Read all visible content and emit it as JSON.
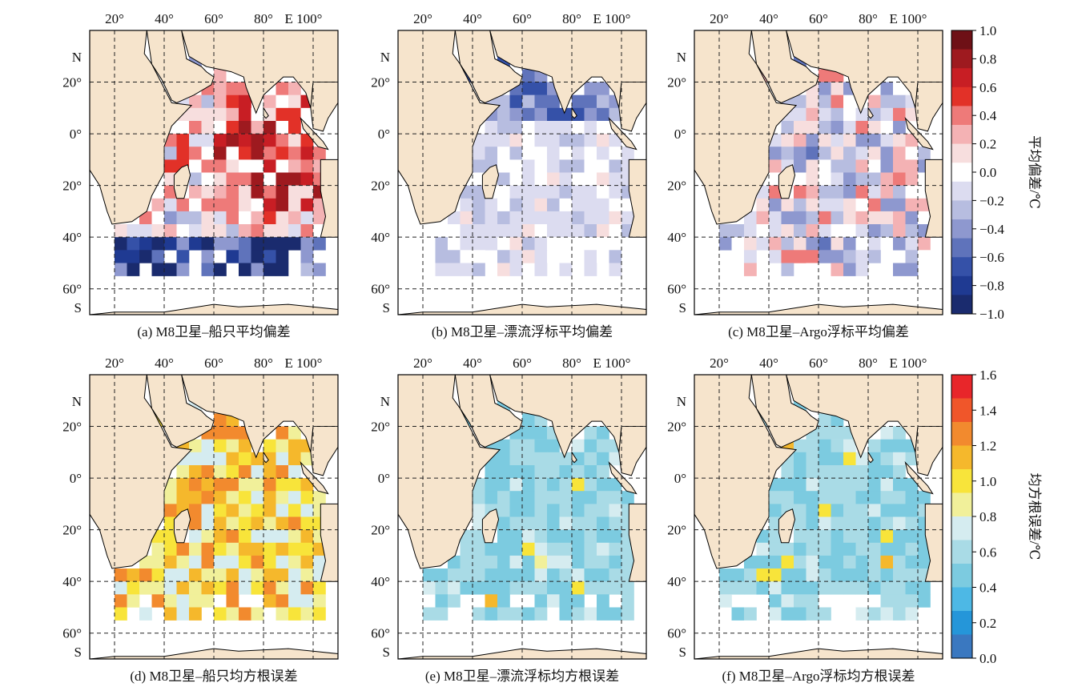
{
  "figure": {
    "panel_titles": [
      "(a) M8卫星–船只平均偏差",
      "(b) M8卫星–漂流浮标平均偏差",
      "(c) M8卫星–Argo浮标平均偏差",
      "(d) M8卫星–船只均方根误差",
      "(e) M8卫星–漂流浮标均方根误差",
      "(f) M8卫星–Argo浮标均方根误差"
    ],
    "lon_ticks": [
      "20°",
      "40°",
      "60°",
      "80°",
      "E 100°"
    ],
    "lat_ticks": [
      "N",
      "20°",
      "0°",
      "20°",
      "40°",
      "60°",
      "S"
    ],
    "colorbar_bias": {
      "label": "平均偏差/℃",
      "ticks": [
        "1.0",
        "0.8",
        "0.6",
        "0.4",
        "0.2",
        "0.0",
        "−0.2",
        "−0.4",
        "−0.6",
        "−0.8",
        "−1.0"
      ],
      "colors": [
        "#6e1016",
        "#9e1a1f",
        "#c81e24",
        "#e23128",
        "#ee7a79",
        "#f4b2b4",
        "#f7dede",
        "#ffffff",
        "#dcdcf0",
        "#b7bde0",
        "#8e98cf",
        "#5f73bb",
        "#3551a8",
        "#1f3a92",
        "#1a2b6e"
      ]
    },
    "colorbar_rmse": {
      "label": "均方根误差/℃",
      "ticks": [
        "1.6",
        "1.4",
        "1.2",
        "1.0",
        "0.8",
        "0.6",
        "0.4",
        "0.2",
        "0.0"
      ],
      "colors": [
        "#e8262a",
        "#f0562a",
        "#f28a2e",
        "#f5b82c",
        "#f8e43a",
        "#f1f09a",
        "#d5ecf0",
        "#a9dbe6",
        "#7ccbe0",
        "#4db8e5",
        "#2596d9",
        "#3a78c0"
      ]
    },
    "land_color": "#f6e4cc"
  },
  "chart_data": [
    {
      "type": "heatmap",
      "title": "(a) M8卫星–船只平均偏差",
      "variable": "平均偏差/℃",
      "x_range": [
        10,
        110
      ],
      "y_range": [
        -70,
        40
      ],
      "seed": 11,
      "vmin": -1.0,
      "vmax": 1.0
    },
    {
      "type": "heatmap",
      "title": "(b) M8卫星–漂流浮标平均偏差",
      "variable": "平均偏差/℃",
      "x_range": [
        10,
        110
      ],
      "y_range": [
        -70,
        40
      ],
      "seed": 23,
      "vmin": -1.0,
      "vmax": 1.0
    },
    {
      "type": "heatmap",
      "title": "(c) M8卫星–Argo浮标平均偏差",
      "variable": "平均偏差/℃",
      "x_range": [
        10,
        110
      ],
      "y_range": [
        -70,
        40
      ],
      "seed": 37,
      "vmin": -1.0,
      "vmax": 1.0
    },
    {
      "type": "heatmap",
      "title": "(d) M8卫星–船只均方根误差",
      "variable": "均方根误差/℃",
      "x_range": [
        10,
        110
      ],
      "y_range": [
        -70,
        40
      ],
      "seed": 41,
      "vmin": 0.0,
      "vmax": 1.6
    },
    {
      "type": "heatmap",
      "title": "(e) M8卫星–漂流浮标均方根误差",
      "variable": "均方根误差/℃",
      "x_range": [
        10,
        110
      ],
      "y_range": [
        -70,
        40
      ],
      "seed": 53,
      "vmin": 0.0,
      "vmax": 1.6
    },
    {
      "type": "heatmap",
      "title": "(f) M8卫星–Argo浮标均方根误差",
      "variable": "均方根误差/℃",
      "x_range": [
        10,
        110
      ],
      "y_range": [
        -70,
        40
      ],
      "seed": 67,
      "vmin": 0.0,
      "vmax": 1.6
    }
  ]
}
